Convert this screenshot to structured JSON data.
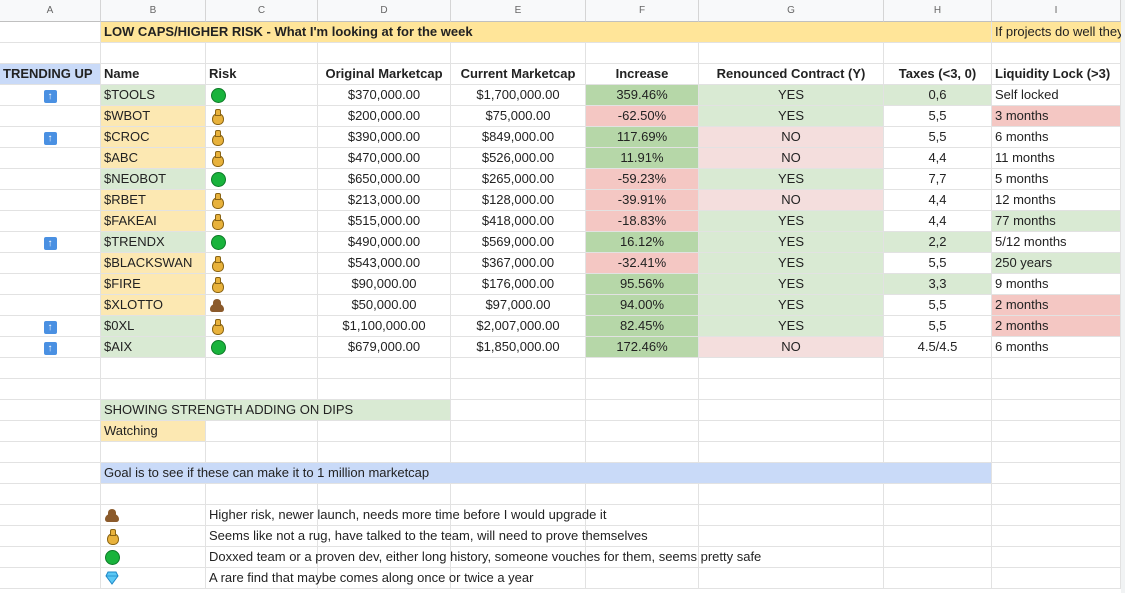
{
  "columns": [
    "A",
    "B",
    "C",
    "D",
    "E",
    "F",
    "G",
    "H",
    "I"
  ],
  "title": "LOW CAPS/HIGHER RISK - What I'm looking at for the week",
  "side_note": "If projects do well they",
  "headers": {
    "trending": "TRENDING UP",
    "name": "Name",
    "risk": "Risk",
    "original_mc": "Original Marketcap",
    "current_mc": "Current Marketcap",
    "increase": "Increase",
    "renounced": "Renounced Contract (Y)",
    "taxes": "Taxes (<3, 0)",
    "liquidity": "Liquidity Lock (>3)"
  },
  "rows": [
    {
      "trending": true,
      "name": "$TOOLS",
      "risk": "green",
      "orig": "$370,000.00",
      "curr": "$1,700,000.00",
      "inc": "359.46%",
      "ren": "YES",
      "tax": "0,6",
      "liq": "Self locked"
    },
    {
      "trending": false,
      "name": "$WBOT",
      "risk": "bag",
      "orig": "$200,000.00",
      "curr": "$75,000.00",
      "inc": "-62.50%",
      "ren": "YES",
      "tax": "5,5",
      "liq": "3 months"
    },
    {
      "trending": true,
      "name": "$CROC",
      "risk": "bag",
      "orig": "$390,000.00",
      "curr": "$849,000.00",
      "inc": "117.69%",
      "ren": "NO",
      "tax": "5,5",
      "liq": "6 months"
    },
    {
      "trending": false,
      "name": "$ABC",
      "risk": "bag",
      "orig": "$470,000.00",
      "curr": "$526,000.00",
      "inc": "11.91%",
      "ren": "NO",
      "tax": "4,4",
      "liq": "11 months"
    },
    {
      "trending": false,
      "name": "$NEOBOT",
      "risk": "green",
      "orig": "$650,000.00",
      "curr": "$265,000.00",
      "inc": "-59.23%",
      "ren": "YES",
      "tax": "7,7",
      "liq": "5 months"
    },
    {
      "trending": false,
      "name": "$RBET",
      "risk": "bag",
      "orig": "$213,000.00",
      "curr": "$128,000.00",
      "inc": "-39.91%",
      "ren": "NO",
      "tax": "4,4",
      "liq": "12 months"
    },
    {
      "trending": false,
      "name": "$FAKEAI",
      "risk": "bag",
      "orig": "$515,000.00",
      "curr": "$418,000.00",
      "inc": "-18.83%",
      "ren": "YES",
      "tax": "4,4",
      "liq": "77 months"
    },
    {
      "trending": true,
      "name": "$TRENDX",
      "risk": "green",
      "orig": "$490,000.00",
      "curr": "$569,000.00",
      "inc": "16.12%",
      "ren": "YES",
      "tax": "2,2",
      "liq": "5/12 months"
    },
    {
      "trending": false,
      "name": "$BLACKSWAN",
      "risk": "bag",
      "orig": "$543,000.00",
      "curr": "$367,000.00",
      "inc": "-32.41%",
      "ren": "YES",
      "tax": "5,5",
      "liq": "250 years"
    },
    {
      "trending": false,
      "name": "$FIRE",
      "risk": "bag",
      "orig": "$90,000.00",
      "curr": "$176,000.00",
      "inc": "95.56%",
      "ren": "YES",
      "tax": "3,3",
      "liq": "9 months"
    },
    {
      "trending": false,
      "name": "$XLOTTO",
      "risk": "poop",
      "orig": "$50,000.00",
      "curr": "$97,000.00",
      "inc": "94.00%",
      "ren": "YES",
      "tax": "5,5",
      "liq": "2 months"
    },
    {
      "trending": true,
      "name": "$0XL",
      "risk": "bag",
      "orig": "$1,100,000.00",
      "curr": "$2,007,000.00",
      "inc": "82.45%",
      "ren": "YES",
      "tax": "5,5",
      "liq": "2 months"
    },
    {
      "trending": true,
      "name": "$AIX",
      "risk": "green",
      "orig": "$679,000.00",
      "curr": "$1,850,000.00",
      "inc": "172.46%",
      "ren": "NO",
      "tax": "4.5/4.5",
      "liq": "6 months"
    }
  ],
  "legend_strength": "SHOWING STRENGTH ADDING ON DIPS",
  "legend_watching": "Watching",
  "goal": "Goal is to see if these can make it to 1 million marketcap",
  "risk_legend": [
    {
      "icon": "poop",
      "text": "Higher risk, newer launch, needs more time before I would upgrade it"
    },
    {
      "icon": "bag",
      "text": "Seems like not a rug, have talked to the team, will need to prove themselves"
    },
    {
      "icon": "green",
      "text": "Doxxed team or a proven dev, either long history, someone vouches for them, seems pretty safe"
    },
    {
      "icon": "diamond",
      "text": "A rare find that maybe comes along once or twice a year"
    }
  ],
  "colors": {
    "green_fill": "#d9ead3",
    "dark_green_fill": "#b6d7a8",
    "red_fill": "#f4c7c3",
    "light_red_fill": "#f4dedd",
    "yellow_fill": "#fce8b2",
    "blue_fill": "#c9daf8",
    "trend_icon": "#4a90e2"
  }
}
